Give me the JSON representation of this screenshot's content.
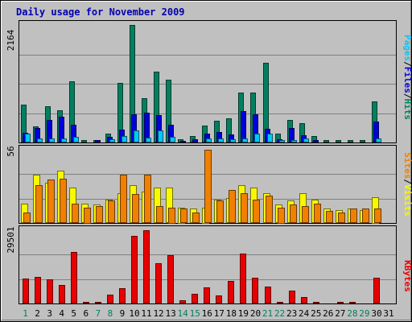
{
  "chart_data": {
    "type": "bar",
    "title": "Daily usage for November 2009",
    "categories": [
      "1",
      "2",
      "3",
      "4",
      "5",
      "6",
      "7",
      "8",
      "9",
      "10",
      "11",
      "12",
      "13",
      "14",
      "15",
      "16",
      "17",
      "18",
      "19",
      "20",
      "21",
      "22",
      "23",
      "24",
      "25",
      "26",
      "27",
      "28",
      "29",
      "30",
      "31"
    ],
    "weekend_days": [
      "1",
      "7",
      "8",
      "14",
      "15",
      "21",
      "22",
      "28",
      "29"
    ],
    "panels": {
      "top": {
        "max_label": "2164",
        "ymax": 2164,
        "axis_labels": [
          {
            "text": "Pages",
            "color": "#00c8f8"
          },
          {
            "text": "/",
            "color": "#000000"
          },
          {
            "text": "Files",
            "color": "#0000d8"
          },
          {
            "text": "/",
            "color": "#000000"
          },
          {
            "text": "Hits",
            "color": "#008060"
          }
        ],
        "series": [
          {
            "name": "Hits",
            "color": "#008060",
            "values": [
              690,
              300,
              670,
              590,
              1130,
              40,
              50,
              160,
              1100,
              2164,
              820,
              1300,
              1150,
              60,
              120,
              310,
              400,
              440,
              920,
              920,
              1470,
              160,
              410,
              350,
              120,
              40,
              40,
              40,
              40,
              760,
              0
            ]
          },
          {
            "name": "Files",
            "color": "#0000d8",
            "values": [
              180,
              270,
              420,
              470,
              330,
              20,
              40,
              110,
              240,
              520,
              550,
              510,
              320,
              30,
              60,
              170,
              190,
              150,
              580,
              520,
              250,
              60,
              260,
              140,
              40,
              10,
              20,
              20,
              10,
              390,
              0
            ]
          },
          {
            "name": "Pages",
            "color": "#00c8f8",
            "values": [
              170,
              80,
              80,
              80,
              100,
              20,
              20,
              60,
              120,
              220,
              90,
              220,
              100,
              20,
              20,
              70,
              70,
              60,
              80,
              160,
              170,
              40,
              50,
              80,
              20,
              10,
              10,
              10,
              10,
              70,
              0
            ]
          }
        ]
      },
      "middle": {
        "max_label": "56",
        "ymax": 56,
        "axis_labels": [
          {
            "text": "Sites",
            "color": "#f08000"
          },
          {
            "text": "/",
            "color": "#000000"
          },
          {
            "text": "Visits",
            "color": "#f8f800"
          }
        ],
        "series": [
          {
            "name": "Visits",
            "color": "#f8f800",
            "values": [
              15,
              37,
              31,
              40,
              27,
              15,
              14,
              18,
              23,
              29,
              24,
              27,
              27,
              12,
              11,
              12,
              18,
              19,
              29,
              27,
              23,
              14,
              17,
              23,
              18,
              11,
              10,
              11,
              10,
              20,
              0
            ]
          },
          {
            "name": "Sites",
            "color": "#f08000",
            "values": [
              8,
              29,
              33,
              34,
              15,
              12,
              13,
              17,
              37,
              22,
              37,
              13,
              12,
              11,
              8,
              56,
              17,
              25,
              23,
              18,
              21,
              12,
              14,
              13,
              15,
              9,
              8,
              11,
              11,
              11,
              0
            ]
          }
        ]
      },
      "bottom": {
        "max_label": "29501",
        "ymax": 29501,
        "axis_labels": [
          {
            "text": "KBytes",
            "color": "#e80000"
          }
        ],
        "series": [
          {
            "name": "KBytes",
            "color": "#e80000",
            "values": [
              10200,
              10800,
              9800,
              7400,
              20600,
              800,
              800,
              3600,
              6200,
              27100,
              29501,
              16300,
              19400,
              1200,
              3800,
              6500,
              3300,
              9100,
              20100,
              10500,
              6800,
              800,
              5200,
              2500,
              700,
              400,
              500,
              600,
              400,
              10300,
              0
            ]
          }
        ]
      }
    }
  }
}
